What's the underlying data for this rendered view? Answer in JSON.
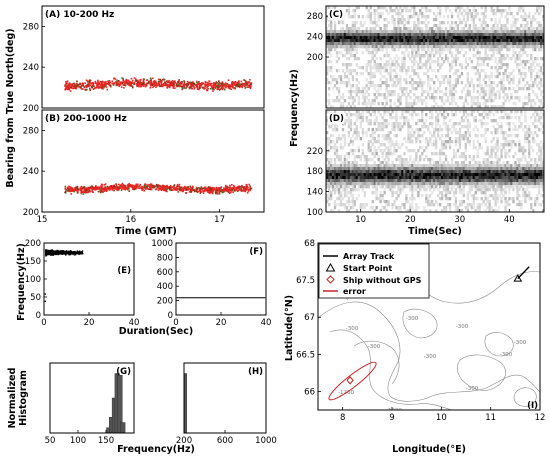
{
  "chart_data": [
    {
      "id": "A",
      "type": "scatter",
      "panel_label": "(A) 10-200 Hz",
      "xlim": [
        15,
        17.5
      ],
      "ylim": [
        200,
        300
      ],
      "yticks": [
        "200",
        "240",
        "280"
      ],
      "series": [
        {
          "color": "#ee2222",
          "x_range": [
            15.25,
            17.35
          ],
          "y_center": 224,
          "y_spread": 6
        }
      ]
    },
    {
      "id": "B",
      "type": "scatter",
      "panel_label": "(B) 200-1000 Hz",
      "xlim": [
        15,
        17.5
      ],
      "ylim": [
        200,
        300
      ],
      "xticks": [
        "15",
        "16",
        "17"
      ],
      "yticks": [
        "200",
        "240",
        "280"
      ],
      "series": [
        {
          "color": "#ee2222",
          "x_range": [
            15.25,
            17.35
          ],
          "y_center": 224,
          "y_spread": 5
        }
      ]
    },
    {
      "id": "C",
      "type": "heatmap",
      "panel_label": "(C)",
      "xlim": [
        3,
        47
      ],
      "ylim": [
        100,
        300
      ],
      "yticks": [
        "200",
        "240",
        "280"
      ],
      "band_center": 236,
      "band_width": 12
    },
    {
      "id": "D",
      "type": "heatmap",
      "panel_label": "(D)",
      "xlim": [
        3,
        47
      ],
      "ylim": [
        100,
        300
      ],
      "xticks": [
        "10",
        "20",
        "30",
        "40"
      ],
      "yticks": [
        "100",
        "140",
        "180",
        "220"
      ],
      "band_center": 172,
      "band_width": 14
    },
    {
      "id": "E",
      "type": "scatter",
      "panel_label": "(E)",
      "xlim": [
        0,
        40
      ],
      "ylim": [
        0,
        200
      ],
      "xticks": [
        "0",
        "20",
        "40"
      ],
      "yticks": [
        "0",
        "50",
        "100",
        "150",
        "200"
      ],
      "cluster": {
        "x_range": [
          0.5,
          17
        ],
        "y_center": 175,
        "y_spread": 10
      },
      "outliers": [
        [
          0.3,
          60
        ],
        [
          0.3,
          40
        ]
      ]
    },
    {
      "id": "F",
      "type": "scatter",
      "panel_label": "(F)",
      "xlim": [
        0,
        40
      ],
      "ylim": [
        0,
        1000
      ],
      "xticks": [
        "0",
        "20",
        "40"
      ],
      "yticks": [
        "0",
        "200",
        "400",
        "600",
        "800",
        "1000"
      ],
      "line_y": 240
    },
    {
      "id": "G",
      "type": "bar",
      "panel_label": "(G)",
      "xlim": [
        50,
        200
      ],
      "ylim": [
        0,
        0.4
      ],
      "xticks": [
        "50",
        "100",
        "150"
      ],
      "yticks": [],
      "bins": [
        [
          155,
          0.03
        ],
        [
          160,
          0.09
        ],
        [
          165,
          0.2
        ],
        [
          170,
          0.34
        ],
        [
          175,
          0.33
        ],
        [
          180,
          0.06
        ]
      ]
    },
    {
      "id": "H",
      "type": "bar",
      "panel_label": "(H)",
      "xlim": [
        200,
        1000
      ],
      "ylim": [
        0,
        0.4
      ],
      "xticks": [
        "200",
        "600",
        "1000"
      ],
      "yticks": [],
      "bins": [
        [
          212,
          0.34
        ]
      ]
    },
    {
      "id": "I",
      "type": "scatter",
      "panel_label": "(I)",
      "xlim": [
        7.5,
        12
      ],
      "ylim": [
        65.75,
        68
      ],
      "xticks": [
        "8",
        "9",
        "10",
        "11",
        "12"
      ],
      "yticks": [
        "66",
        "66.5",
        "67",
        "67.5",
        "68"
      ],
      "array_track": [
        [
          11.55,
          67.52
        ],
        [
          11.78,
          67.68
        ]
      ],
      "start_point": [
        11.55,
        67.52
      ],
      "ship": [
        8.15,
        66.15
      ],
      "error_ellipse": {
        "center": [
          8.2,
          66.14
        ],
        "rx_deg": 0.6,
        "ry_deg": 0.28
      }
    }
  ],
  "figure": {
    "ylabel_bearing": "Bearing from True North(deg)",
    "xlabel_time_gmt": "Time (GMT)",
    "ylabel_frequency": "Frequency(Hz)",
    "xlabel_time_sec": "Time(Sec)",
    "ylabel_frequency_e": "Frequency(Hz)",
    "xlabel_duration": "Duration(Sec)",
    "ylabel_hist_1": "Normalized",
    "ylabel_hist_2": "Histogram",
    "xlabel_frequency": "Frequency(Hz)",
    "ylabel_latitude": "Latitude(°N)",
    "xlabel_longitude": "Longitude(°E)"
  },
  "legend": [
    {
      "label": "Array Track",
      "symbol": "line",
      "color": "#000000"
    },
    {
      "label": "Start Point",
      "symbol": "triangle",
      "color": "#000000"
    },
    {
      "label": "Ship without GPS",
      "symbol": "diamond",
      "color": "#cc2222"
    },
    {
      "label": "error",
      "symbol": "line",
      "color": "#cc2222"
    }
  ],
  "map_contours": [
    "-300",
    "-300",
    "-300",
    "-300",
    "-300",
    "-300",
    "-300",
    "-300",
    "-300",
    "-1200",
    "-1200"
  ]
}
